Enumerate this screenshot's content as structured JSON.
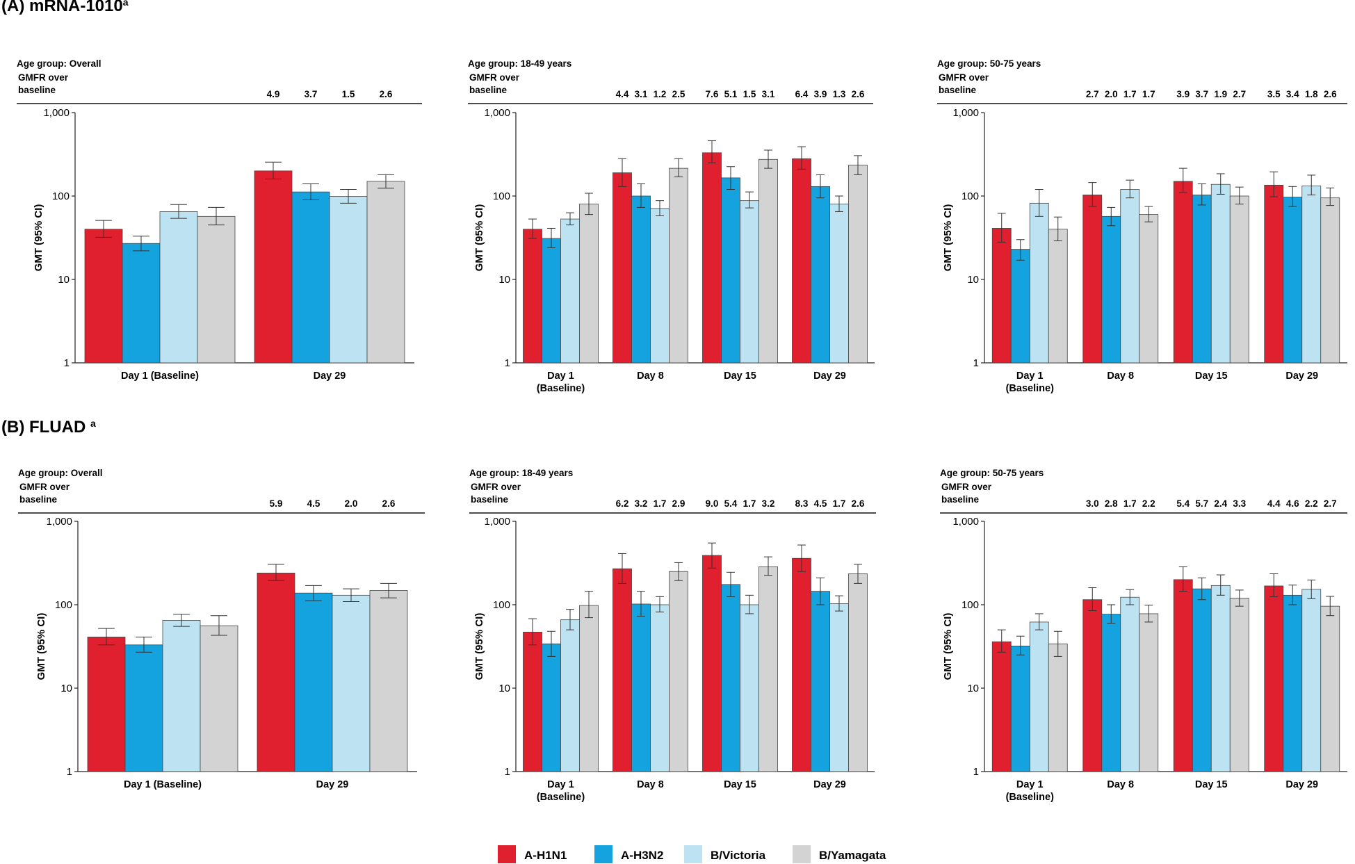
{
  "figure": {
    "sections": [
      {
        "label": "(A) mRNA-1010",
        "sup": "a"
      },
      {
        "label": "(B) FLUAD ",
        "sup": "a"
      }
    ],
    "legend": [
      {
        "name": "A-H1N1",
        "color": "#e0202e"
      },
      {
        "name": "A-H3N2",
        "color": "#14a3de"
      },
      {
        "name": "B/Victoria",
        "color": "#bde3f3"
      },
      {
        "name": "B/Yamagata",
        "color": "#d3d3d3"
      }
    ],
    "gmfr_label": [
      "GMFR over",
      "baseline"
    ],
    "y_axis_label": "GMT (95% CI)",
    "y_ticks": [
      "1",
      "10",
      "100",
      "1,000"
    ]
  },
  "chart_data": [
    {
      "type": "bar",
      "section": "A",
      "panel_title": "Age group: Overall",
      "scale": "log",
      "ylim": [
        1,
        1000
      ],
      "ylabel": "GMT (95% CI)",
      "categories": [
        [
          "Day 1 (Baseline)"
        ],
        [
          "Day 29"
        ]
      ],
      "gmfr": [
        [],
        [
          "4.9",
          "3.7",
          "1.5",
          "2.6"
        ]
      ],
      "series": [
        {
          "name": "A-H1N1",
          "values": [
            40,
            200
          ],
          "ci_low": [
            32,
            160
          ],
          "ci_high": [
            51,
            255
          ]
        },
        {
          "name": "A-H3N2",
          "values": [
            27,
            112
          ],
          "ci_low": [
            22,
            90
          ],
          "ci_high": [
            33,
            140
          ]
        },
        {
          "name": "B/Victoria",
          "values": [
            65,
            99
          ],
          "ci_low": [
            54,
            82
          ],
          "ci_high": [
            79,
            120
          ]
        },
        {
          "name": "B/Yamagata",
          "values": [
            57,
            150
          ],
          "ci_low": [
            45,
            124
          ],
          "ci_high": [
            73,
            180
          ]
        }
      ]
    },
    {
      "type": "bar",
      "section": "A",
      "panel_title": "Age group: 18-49 years",
      "scale": "log",
      "ylim": [
        1,
        1000
      ],
      "ylabel": "GMT (95% CI)",
      "categories": [
        [
          "Day 1",
          "(Baseline)"
        ],
        [
          "Day 8"
        ],
        [
          "Day 15"
        ],
        [
          "Day 29"
        ]
      ],
      "gmfr": [
        [],
        [
          "4.4",
          "3.1",
          "1.2",
          "2.5"
        ],
        [
          "7.6",
          "5.1",
          "1.5",
          "3.1"
        ],
        [
          "6.4",
          "3.9",
          "1.3",
          "2.6"
        ]
      ],
      "series": [
        {
          "name": "A-H1N1",
          "values": [
            40,
            190,
            330,
            280
          ],
          "ci_low": [
            31,
            130,
            250,
            210
          ],
          "ci_high": [
            53,
            280,
            460,
            390
          ]
        },
        {
          "name": "A-H3N2",
          "values": [
            31,
            100,
            165,
            130
          ],
          "ci_low": [
            24,
            73,
            120,
            95
          ],
          "ci_high": [
            41,
            140,
            225,
            180
          ]
        },
        {
          "name": "B/Victoria",
          "values": [
            53,
            71,
            88,
            80
          ],
          "ci_low": [
            45,
            58,
            72,
            65
          ],
          "ci_high": [
            63,
            88,
            112,
            100
          ]
        },
        {
          "name": "B/Yamagata",
          "values": [
            80,
            215,
            275,
            235
          ],
          "ci_low": [
            60,
            170,
            215,
            180
          ],
          "ci_high": [
            108,
            280,
            355,
            305
          ]
        }
      ]
    },
    {
      "type": "bar",
      "section": "A",
      "panel_title": "Age group: 50-75 years",
      "scale": "log",
      "ylim": [
        1,
        1000
      ],
      "ylabel": "GMT (95% CI)",
      "categories": [
        [
          "Day 1",
          "(Baseline)"
        ],
        [
          "Day 8"
        ],
        [
          "Day 15"
        ],
        [
          "Day 29"
        ]
      ],
      "gmfr": [
        [],
        [
          "2.7",
          "2.0",
          "1.7",
          "1.7"
        ],
        [
          "3.9",
          "3.7",
          "1.9",
          "2.7"
        ],
        [
          "3.5",
          "3.4",
          "1.8",
          "2.6"
        ]
      ],
      "series": [
        {
          "name": "A-H1N1",
          "values": [
            41,
            103,
            150,
            135
          ],
          "ci_low": [
            28,
            75,
            110,
            98
          ],
          "ci_high": [
            62,
            145,
            215,
            195
          ]
        },
        {
          "name": "A-H3N2",
          "values": [
            23,
            57,
            103,
            97
          ],
          "ci_low": [
            17,
            44,
            78,
            75
          ],
          "ci_high": [
            30,
            73,
            140,
            130
          ]
        },
        {
          "name": "B/Victoria",
          "values": [
            82,
            120,
            138,
            132
          ],
          "ci_low": [
            57,
            95,
            105,
            103
          ],
          "ci_high": [
            120,
            155,
            185,
            178
          ]
        },
        {
          "name": "B/Yamagata",
          "values": [
            40,
            60,
            100,
            95
          ],
          "ci_low": [
            29,
            49,
            80,
            77
          ],
          "ci_high": [
            56,
            75,
            128,
            125
          ]
        }
      ]
    },
    {
      "type": "bar",
      "section": "B",
      "panel_title": "Age group: Overall",
      "scale": "log",
      "ylim": [
        1,
        1000
      ],
      "ylabel": "GMT (95% CI)",
      "categories": [
        [
          "Day 1 (Baseline)"
        ],
        [
          "Day 29"
        ]
      ],
      "gmfr": [
        [],
        [
          "5.9",
          "4.5",
          "2.0",
          "2.6"
        ]
      ],
      "series": [
        {
          "name": "A-H1N1",
          "values": [
            41,
            240
          ],
          "ci_low": [
            33,
            195
          ],
          "ci_high": [
            52,
            305
          ]
        },
        {
          "name": "A-H3N2",
          "values": [
            33,
            138
          ],
          "ci_low": [
            27,
            112
          ],
          "ci_high": [
            41,
            170
          ]
        },
        {
          "name": "B/Victoria",
          "values": [
            65,
            130
          ],
          "ci_low": [
            55,
            109
          ],
          "ci_high": [
            77,
            155
          ]
        },
        {
          "name": "B/Yamagata",
          "values": [
            56,
            148
          ],
          "ci_low": [
            43,
            121
          ],
          "ci_high": [
            74,
            180
          ]
        }
      ]
    },
    {
      "type": "bar",
      "section": "B",
      "panel_title": "Age group: 18-49 years",
      "scale": "log",
      "ylim": [
        1,
        1000
      ],
      "ylabel": "GMT (95% CI)",
      "categories": [
        [
          "Day 1",
          "(Baseline)"
        ],
        [
          "Day 8"
        ],
        [
          "Day 15"
        ],
        [
          "Day 29"
        ]
      ],
      "gmfr": [
        [],
        [
          "6.2",
          "3.2",
          "1.7",
          "2.9"
        ],
        [
          "9.0",
          "5.4",
          "1.7",
          "3.2"
        ],
        [
          "8.3",
          "4.5",
          "1.7",
          "2.6"
        ]
      ],
      "series": [
        {
          "name": "A-H1N1",
          "values": [
            47,
            270,
            390,
            360
          ],
          "ci_low": [
            33,
            180,
            275,
            250
          ],
          "ci_high": [
            68,
            410,
            550,
            520
          ]
        },
        {
          "name": "A-H3N2",
          "values": [
            34,
            102,
            175,
            145
          ],
          "ci_low": [
            24,
            73,
            125,
            100
          ],
          "ci_high": [
            48,
            145,
            245,
            210
          ]
        },
        {
          "name": "B/Victoria",
          "values": [
            66,
            100,
            100,
            103
          ],
          "ci_low": [
            50,
            82,
            78,
            84
          ],
          "ci_high": [
            88,
            125,
            130,
            128
          ]
        },
        {
          "name": "B/Yamagata",
          "values": [
            98,
            250,
            285,
            235
          ],
          "ci_low": [
            70,
            195,
            225,
            180
          ],
          "ci_high": [
            145,
            320,
            375,
            305
          ]
        }
      ]
    },
    {
      "type": "bar",
      "section": "B",
      "panel_title": "Age group: 50-75 years",
      "scale": "log",
      "ylim": [
        1,
        1000
      ],
      "ylabel": "GMT (95% CI)",
      "categories": [
        [
          "Day 1",
          "(Baseline)"
        ],
        [
          "Day 8"
        ],
        [
          "Day 15"
        ],
        [
          "Day 29"
        ]
      ],
      "gmfr": [
        [],
        [
          "3.0",
          "2.8",
          "1.7",
          "2.2"
        ],
        [
          "5.4",
          "5.7",
          "2.4",
          "3.3"
        ],
        [
          "4.4",
          "4.6",
          "2.2",
          "2.7"
        ]
      ],
      "series": [
        {
          "name": "A-H1N1",
          "values": [
            36,
            115,
            200,
            168
          ],
          "ci_low": [
            27,
            85,
            145,
            125
          ],
          "ci_high": [
            50,
            160,
            285,
            235
          ]
        },
        {
          "name": "A-H3N2",
          "values": [
            32,
            77,
            155,
            130
          ],
          "ci_low": [
            25,
            60,
            115,
            100
          ],
          "ci_high": [
            42,
            100,
            210,
            172
          ]
        },
        {
          "name": "B/Victoria",
          "values": [
            62,
            123,
            170,
            153
          ],
          "ci_low": [
            50,
            100,
            130,
            118
          ],
          "ci_high": [
            78,
            152,
            228,
            198
          ]
        },
        {
          "name": "B/Yamagata",
          "values": [
            34,
            78,
            120,
            96
          ],
          "ci_low": [
            24,
            62,
            96,
            74
          ],
          "ci_high": [
            48,
            99,
            150,
            126
          ]
        }
      ]
    }
  ]
}
